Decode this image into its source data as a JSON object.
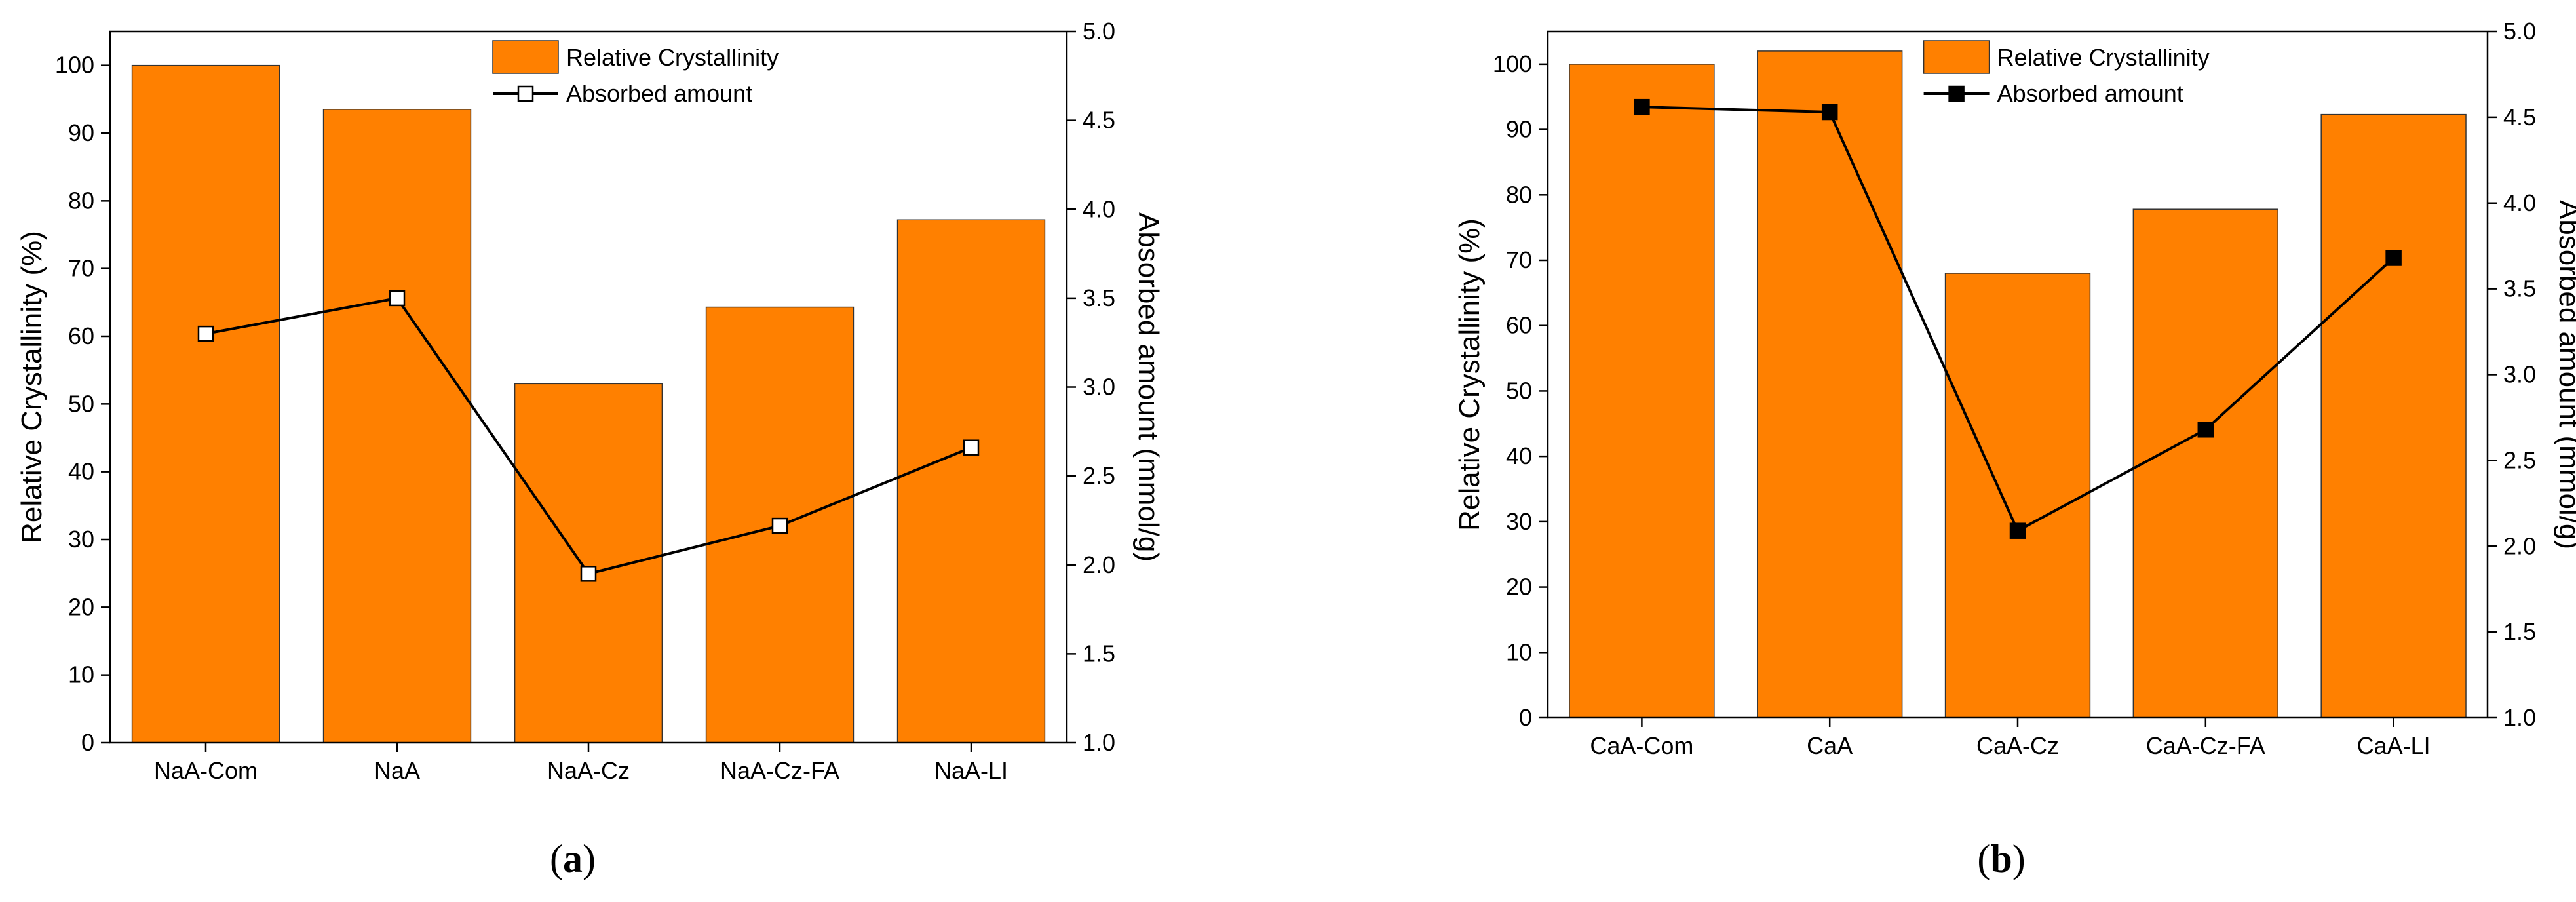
{
  "chart_data": [
    {
      "type": "bar",
      "panel_label": "(a)",
      "panel_letter": "a",
      "categories": [
        "NaA-Com",
        "NaA",
        "NaA-Cz",
        "NaA-Cz-FA",
        "NaA-LI"
      ],
      "series": [
        {
          "name": "Relative Crystallinity",
          "type": "bar",
          "axis": "left",
          "values": [
            100,
            93.5,
            53,
            64.3,
            77.2
          ]
        },
        {
          "name": "Absorbed amount",
          "type": "line",
          "axis": "right",
          "marker": "open-square",
          "values": [
            3.3,
            3.5,
            1.95,
            2.22,
            2.66
          ]
        }
      ],
      "ylabel": "Relative Crystallinity (%)",
      "ylabel_right": "Absorbed amount (mmol/g)",
      "ylim": [
        0,
        105
      ],
      "yticks": [
        0,
        10,
        20,
        30,
        40,
        50,
        60,
        70,
        80,
        90,
        100
      ],
      "ylim_right": [
        1.0,
        5.0
      ],
      "yticks_right": [
        "1.0",
        "1.5",
        "2.0",
        "2.5",
        "3.0",
        "3.5",
        "4.0",
        "4.5",
        "5.0"
      ],
      "legend": {
        "position": "top-center",
        "entries": [
          "Relative Crystallinity",
          "Absorbed amount"
        ]
      },
      "bar_color": "#ff8000",
      "line_color": "#000000"
    },
    {
      "type": "bar",
      "panel_label": "(b)",
      "panel_letter": "b",
      "categories": [
        "CaA-Com",
        "CaA",
        "CaA-Cz",
        "CaA-Cz-FA",
        "CaA-LI"
      ],
      "series": [
        {
          "name": "Relative Crystallinity",
          "type": "bar",
          "axis": "left",
          "values": [
            100,
            102,
            68,
            77.8,
            92.3
          ]
        },
        {
          "name": "Absorbed amount",
          "type": "line",
          "axis": "right",
          "marker": "filled-square",
          "values": [
            4.56,
            4.53,
            2.09,
            2.68,
            3.68
          ]
        }
      ],
      "ylabel": "Relative Crystallinity (%)",
      "ylabel_right": "Absorbed amount (mmol/g)",
      "ylim": [
        0,
        105
      ],
      "yticks": [
        0,
        10,
        20,
        30,
        40,
        50,
        60,
        70,
        80,
        90,
        100
      ],
      "ylim_right": [
        1.0,
        5.0
      ],
      "yticks_right": [
        "1.0",
        "1.5",
        "2.0",
        "2.5",
        "3.0",
        "3.5",
        "4.0",
        "4.5",
        "5.0"
      ],
      "legend": {
        "position": "top-center",
        "entries": [
          "Relative Crystallinity",
          "Absorbed amount"
        ]
      },
      "bar_color": "#ff8000",
      "line_color": "#000000"
    }
  ]
}
